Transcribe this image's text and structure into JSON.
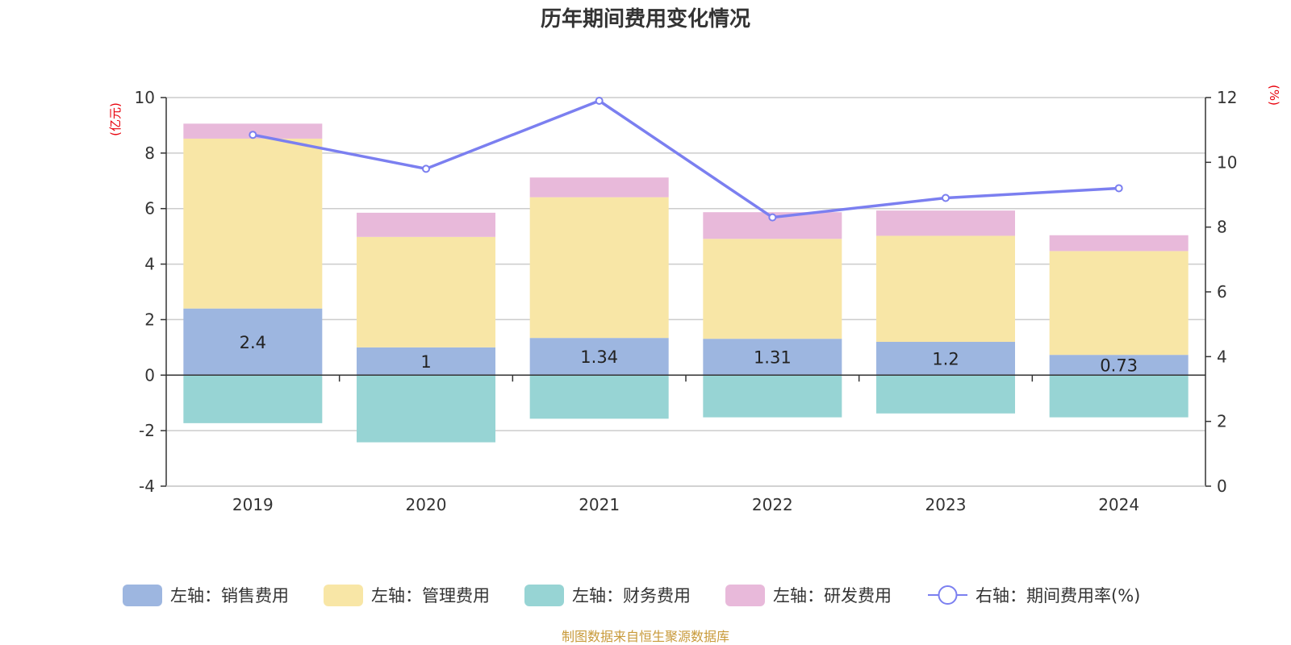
{
  "chart_data": {
    "type": "bar",
    "title": "历年期间费用变化情况",
    "categories": [
      "2019",
      "2020",
      "2021",
      "2022",
      "2023",
      "2024"
    ],
    "left_axis": {
      "unit": "(亿元)",
      "ylim": [
        -4,
        10
      ],
      "ticks": [
        "10",
        "8",
        "6",
        "4",
        "2",
        "0",
        "-2",
        "-4"
      ]
    },
    "right_axis": {
      "unit": "(%)",
      "ylim": [
        0,
        12
      ],
      "ticks": [
        "12",
        "10",
        "8",
        "6",
        "4",
        "2",
        "0"
      ]
    },
    "series": [
      {
        "name": "左轴：销售费用",
        "type": "bar",
        "axis": "left",
        "color": "#9db6e0",
        "values": [
          2.4,
          1,
          1.34,
          1.31,
          1.2,
          0.73
        ],
        "labels": [
          "2.4",
          "1",
          "1.34",
          "1.31",
          "1.2",
          "0.73"
        ]
      },
      {
        "name": "左轴：管理费用",
        "type": "bar",
        "axis": "left",
        "color": "#f8e6a6",
        "values": [
          6.12,
          3.98,
          5.07,
          3.6,
          3.82,
          3.74
        ]
      },
      {
        "name": "左轴：财务费用",
        "type": "bar",
        "axis": "left",
        "color": "#97d4d4",
        "values": [
          -1.73,
          -2.42,
          -1.57,
          -1.52,
          -1.38,
          -1.52
        ]
      },
      {
        "name": "左轴：研发费用",
        "type": "bar",
        "axis": "left",
        "color": "#e8b9da",
        "values": [
          0.54,
          0.87,
          0.71,
          0.96,
          0.91,
          0.57
        ]
      },
      {
        "name": "右轴：期间费用率(%)",
        "type": "line",
        "axis": "right",
        "color": "#7b7ff0",
        "values": [
          10.85,
          9.8,
          11.9,
          8.3,
          8.9,
          9.2
        ]
      }
    ],
    "legend_position": "bottom"
  },
  "source": {
    "text": "制图数据来自恒生聚源数据库",
    "color": "#c89a3a"
  }
}
